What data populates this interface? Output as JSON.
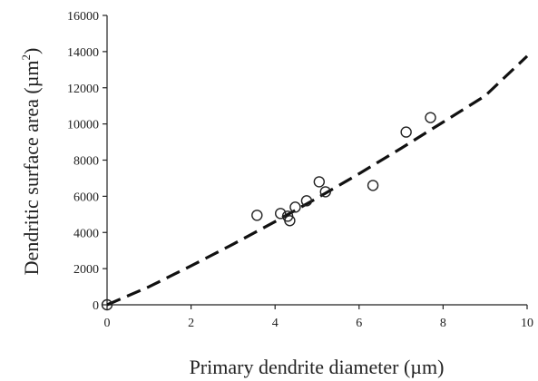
{
  "chart_data": {
    "type": "scatter",
    "title": "",
    "xlabel": "Primary dendrite diameter (µm)",
    "ylabel_main": "Dendritic surface area (µm",
    "ylabel_sup": "2",
    "ylabel_close": ")",
    "xlim": [
      0,
      10
    ],
    "ylim": [
      0,
      16000
    ],
    "x_ticks": [
      0,
      2,
      4,
      6,
      8,
      10
    ],
    "y_ticks": [
      0,
      2000,
      4000,
      6000,
      8000,
      10000,
      12000,
      14000,
      16000
    ],
    "grid": false,
    "legend": "none",
    "series": [
      {
        "marker": "open-circle",
        "points": [
          {
            "x": 0.0,
            "y": 0
          },
          {
            "x": 3.57,
            "y": 4950
          },
          {
            "x": 4.13,
            "y": 5050
          },
          {
            "x": 4.3,
            "y": 4900
          },
          {
            "x": 4.35,
            "y": 4650
          },
          {
            "x": 4.48,
            "y": 5400
          },
          {
            "x": 4.75,
            "y": 5750
          },
          {
            "x": 5.05,
            "y": 6800
          },
          {
            "x": 5.2,
            "y": 6250
          },
          {
            "x": 6.33,
            "y": 6600
          },
          {
            "x": 7.12,
            "y": 9550
          },
          {
            "x": 7.7,
            "y": 10350
          }
        ]
      },
      {
        "style": "dashed-fit",
        "points": [
          {
            "x": 0,
            "y": 0
          },
          {
            "x": 1,
            "y": 1000
          },
          {
            "x": 2,
            "y": 2150
          },
          {
            "x": 3,
            "y": 3350
          },
          {
            "x": 4,
            "y": 4600
          },
          {
            "x": 5,
            "y": 5900
          },
          {
            "x": 6,
            "y": 7250
          },
          {
            "x": 7,
            "y": 8650
          },
          {
            "x": 8,
            "y": 10100
          },
          {
            "x": 9,
            "y": 11550
          },
          {
            "x": 10,
            "y": 13750
          }
        ]
      }
    ],
    "colors": {
      "axis": "#222222",
      "marker": "#222222",
      "fit": "#111111"
    }
  }
}
